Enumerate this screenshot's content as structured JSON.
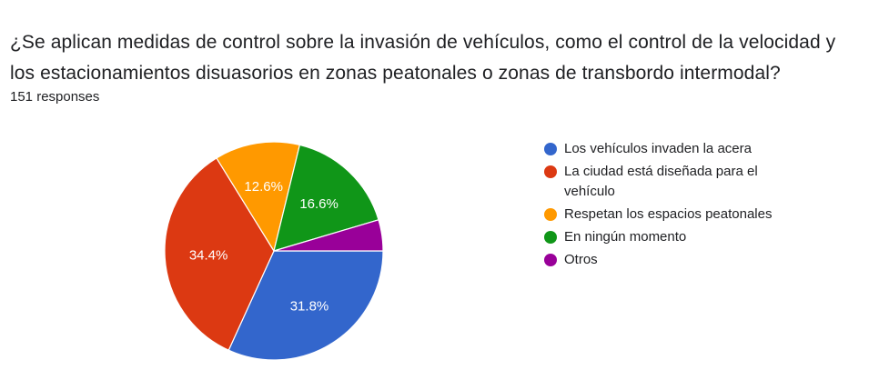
{
  "question": {
    "title": "¿Se aplican medidas de control sobre la invasión de vehículos, como el control de la velocidad y los estacionamientos disuasorios en zonas peatonales o zonas de transbordo intermodal?",
    "responses": "151 responses"
  },
  "chart_data": {
    "type": "pie",
    "title": "¿Se aplican medidas de control sobre la invasión de vehículos, como el control de la velocidad y los estacionamientos disuasorios en zonas peatonales o zonas de transbordo intermodal?",
    "total_responses": 151,
    "legend_position": "right",
    "slices": [
      {
        "label": "Los vehículos invaden la acera",
        "value": 31.8,
        "display": "31.8%",
        "color": "#3366cc",
        "show_label": true
      },
      {
        "label": "La ciudad está diseñada para el vehículo",
        "value": 34.4,
        "display": "34.4%",
        "color": "#dc3912",
        "show_label": true
      },
      {
        "label": "Respetan los espacios peatonales",
        "value": 12.6,
        "display": "12.6%",
        "color": "#ff9900",
        "show_label": true
      },
      {
        "label": "En ningún momento",
        "value": 16.6,
        "display": "16.6%",
        "color": "#109618",
        "show_label": true
      },
      {
        "label": "Otros",
        "value": 4.6,
        "display": "",
        "color": "#990099",
        "show_label": false
      }
    ]
  }
}
